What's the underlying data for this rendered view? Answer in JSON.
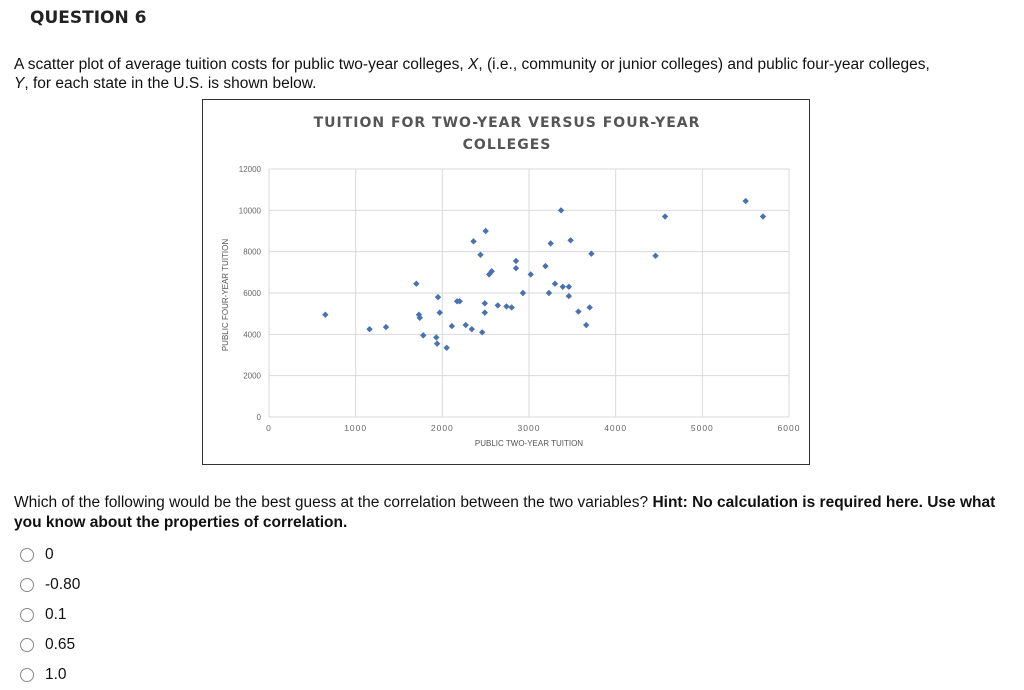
{
  "question": {
    "title": "QUESTION 6",
    "prompt_line1_a": "A scatter plot of average tuition costs for public two-year colleges, ",
    "prompt_x": "X",
    "prompt_line1_b": ", (i.e., community or junior colleges) and public four-year colleges,",
    "prompt_y": "Y",
    "prompt_line2": ", for each state in the U.S. is shown below.",
    "ask": "Which of the following would be the best guess at the correlation between the two variables? ",
    "hint": "Hint: No calculation is required here. Use what you know about the properties of correlation.",
    "options": [
      {
        "label": "0"
      },
      {
        "label": "-0.80"
      },
      {
        "label": "0.1"
      },
      {
        "label": "0.65"
      },
      {
        "label": "1.0"
      }
    ]
  },
  "chart": {
    "title_line1": "TUITION FOR TWO-YEAR VERSUS FOUR-YEAR",
    "title_line2": "COLLEGES",
    "marker_color": "#4a72b0",
    "grid_color": "#d9d9d9"
  },
  "chart_data": {
    "type": "scatter",
    "title": "TUITION FOR TWO-YEAR VERSUS FOUR-YEAR COLLEGES",
    "xlabel": "PUBLIC TWO-YEAR TUITION",
    "ylabel": "PUBLIC FOUR-YEAR TUITION",
    "xlim": [
      0,
      6000
    ],
    "ylim": [
      0,
      12000
    ],
    "xticks": [
      0,
      1000,
      2000,
      3000,
      4000,
      5000,
      6000
    ],
    "yticks": [
      0,
      2000,
      4000,
      6000,
      8000,
      10000,
      12000
    ],
    "grid": true,
    "legend": null,
    "points": [
      {
        "x": 650,
        "y": 4950
      },
      {
        "x": 1160,
        "y": 4250
      },
      {
        "x": 1350,
        "y": 4350
      },
      {
        "x": 1700,
        "y": 6450
      },
      {
        "x": 1730,
        "y": 4950
      },
      {
        "x": 1740,
        "y": 4800
      },
      {
        "x": 1780,
        "y": 3950
      },
      {
        "x": 1930,
        "y": 3850
      },
      {
        "x": 1940,
        "y": 3550
      },
      {
        "x": 1950,
        "y": 5800
      },
      {
        "x": 1970,
        "y": 5050
      },
      {
        "x": 2050,
        "y": 3350
      },
      {
        "x": 2110,
        "y": 4400
      },
      {
        "x": 2170,
        "y": 5600
      },
      {
        "x": 2200,
        "y": 5600
      },
      {
        "x": 2270,
        "y": 4450
      },
      {
        "x": 2340,
        "y": 4250
      },
      {
        "x": 2360,
        "y": 8500
      },
      {
        "x": 2440,
        "y": 7850
      },
      {
        "x": 2460,
        "y": 4100
      },
      {
        "x": 2490,
        "y": 5500
      },
      {
        "x": 2490,
        "y": 5050
      },
      {
        "x": 2500,
        "y": 9000
      },
      {
        "x": 2540,
        "y": 6900
      },
      {
        "x": 2570,
        "y": 7050
      },
      {
        "x": 2640,
        "y": 5400
      },
      {
        "x": 2740,
        "y": 5350
      },
      {
        "x": 2800,
        "y": 5300
      },
      {
        "x": 2850,
        "y": 7550
      },
      {
        "x": 2850,
        "y": 7200
      },
      {
        "x": 2930,
        "y": 6000
      },
      {
        "x": 3020,
        "y": 6900
      },
      {
        "x": 3190,
        "y": 7300
      },
      {
        "x": 3230,
        "y": 6000
      },
      {
        "x": 3250,
        "y": 8400
      },
      {
        "x": 3300,
        "y": 6450
      },
      {
        "x": 3370,
        "y": 10000
      },
      {
        "x": 3390,
        "y": 6300
      },
      {
        "x": 3460,
        "y": 6300
      },
      {
        "x": 3460,
        "y": 5850
      },
      {
        "x": 3480,
        "y": 8550
      },
      {
        "x": 3570,
        "y": 5100
      },
      {
        "x": 3660,
        "y": 4450
      },
      {
        "x": 3700,
        "y": 5300
      },
      {
        "x": 3720,
        "y": 7900
      },
      {
        "x": 4460,
        "y": 7800
      },
      {
        "x": 4570,
        "y": 9700
      },
      {
        "x": 5500,
        "y": 10450
      },
      {
        "x": 5700,
        "y": 9700
      }
    ]
  }
}
